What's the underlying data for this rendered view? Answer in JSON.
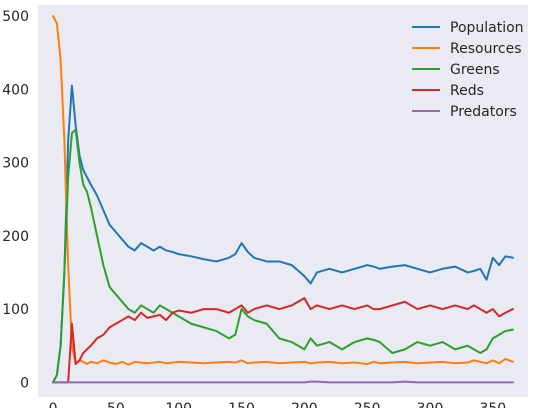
{
  "chart_data": {
    "type": "line",
    "title": "",
    "xlabel": "",
    "ylabel": "",
    "xlim": [
      -12,
      378
    ],
    "ylim": [
      -20,
      515
    ],
    "x_ticks": [
      0,
      50,
      100,
      150,
      200,
      250,
      300,
      350
    ],
    "y_ticks": [
      0,
      100,
      200,
      300,
      400,
      500
    ],
    "grid": false,
    "background": "#eaeaf2",
    "legend_position": "upper right",
    "x": [
      0,
      3,
      6,
      9,
      12,
      15,
      18,
      21,
      24,
      27,
      30,
      35,
      40,
      45,
      50,
      55,
      60,
      65,
      70,
      75,
      80,
      85,
      90,
      95,
      100,
      110,
      120,
      130,
      140,
      145,
      150,
      155,
      160,
      170,
      180,
      190,
      200,
      205,
      210,
      220,
      230,
      240,
      250,
      255,
      260,
      270,
      280,
      290,
      300,
      310,
      320,
      330,
      335,
      340,
      345,
      350,
      355,
      360,
      366
    ],
    "series": [
      {
        "name": "Population",
        "color": "#1f77b4",
        "values": [
          0,
          10,
          50,
          150,
          330,
          405,
          350,
          310,
          290,
          280,
          270,
          255,
          235,
          215,
          205,
          195,
          185,
          180,
          190,
          185,
          180,
          185,
          180,
          178,
          175,
          172,
          168,
          165,
          170,
          175,
          190,
          178,
          170,
          165,
          165,
          160,
          145,
          135,
          150,
          155,
          150,
          155,
          160,
          158,
          155,
          158,
          160,
          155,
          150,
          155,
          158,
          150,
          152,
          155,
          140,
          170,
          160,
          172,
          170
        ]
      },
      {
        "name": "Resources",
        "color": "#ff7f0e",
        "values": [
          500,
          490,
          440,
          330,
          160,
          50,
          25,
          30,
          28,
          25,
          28,
          26,
          30,
          27,
          25,
          28,
          24,
          28,
          27,
          26,
          27,
          28,
          26,
          27,
          28,
          27,
          26,
          27,
          28,
          27,
          30,
          26,
          27,
          28,
          26,
          27,
          28,
          26,
          27,
          28,
          26,
          27,
          25,
          28,
          26,
          27,
          28,
          26,
          27,
          28,
          26,
          27,
          30,
          28,
          26,
          30,
          26,
          32,
          28
        ]
      },
      {
        "name": "Greens",
        "color": "#2ca02c",
        "values": [
          0,
          10,
          50,
          150,
          280,
          340,
          345,
          300,
          270,
          260,
          240,
          200,
          160,
          130,
          120,
          110,
          100,
          95,
          105,
          100,
          95,
          105,
          100,
          95,
          90,
          80,
          75,
          70,
          60,
          65,
          100,
          90,
          85,
          80,
          60,
          55,
          45,
          60,
          50,
          55,
          45,
          55,
          60,
          58,
          55,
          40,
          45,
          55,
          50,
          55,
          45,
          50,
          45,
          40,
          45,
          60,
          65,
          70,
          72
        ]
      },
      {
        "name": "Reds",
        "color": "#d62728",
        "values": [
          0,
          0,
          0,
          0,
          0,
          80,
          25,
          30,
          40,
          45,
          50,
          60,
          65,
          75,
          80,
          85,
          90,
          85,
          95,
          88,
          90,
          92,
          85,
          95,
          98,
          95,
          100,
          100,
          95,
          100,
          105,
          95,
          100,
          105,
          100,
          105,
          115,
          100,
          105,
          100,
          105,
          100,
          105,
          100,
          100,
          105,
          110,
          100,
          105,
          100,
          105,
          100,
          105,
          100,
          95,
          100,
          90,
          95,
          100
        ]
      },
      {
        "name": "Predators",
        "color": "#9467bd",
        "values": [
          0,
          0,
          0,
          0,
          0,
          0,
          0,
          0,
          0,
          0,
          0,
          0,
          0,
          0,
          0,
          0,
          0,
          0,
          0,
          0,
          0,
          0,
          0,
          0,
          0,
          0,
          0,
          0,
          0,
          0,
          0,
          0,
          0,
          0,
          0,
          0,
          0,
          1,
          1,
          0,
          0,
          0,
          0,
          0,
          0,
          0,
          1,
          0,
          0,
          0,
          0,
          0,
          0,
          0,
          0,
          0,
          0,
          0,
          0
        ]
      }
    ]
  }
}
